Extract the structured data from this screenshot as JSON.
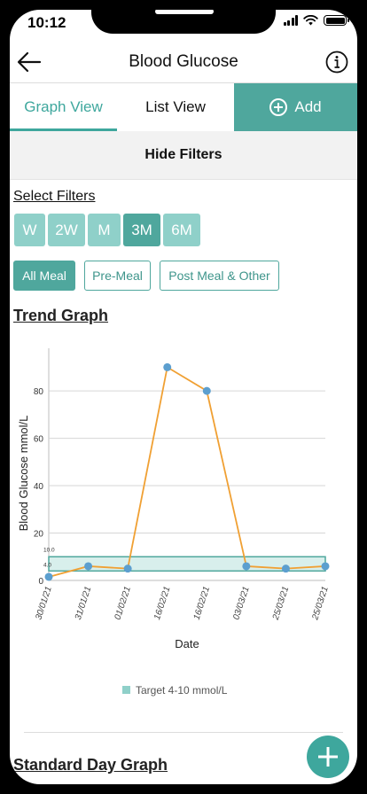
{
  "status": {
    "time": "10:12"
  },
  "header": {
    "title": "Blood Glucose",
    "back_icon": "back-arrow-icon",
    "info_icon": "info-icon"
  },
  "tabs": {
    "graph": "Graph View",
    "list": "List View",
    "add": "Add"
  },
  "hide_filters": "Hide Filters",
  "filters": {
    "label": "Select Filters",
    "ranges": [
      "W",
      "2W",
      "M",
      "3M",
      "6M"
    ],
    "active_range": "3M",
    "meals": [
      "All Meal",
      "Pre-Meal",
      "Post Meal & Other"
    ],
    "active_meal": "All Meal"
  },
  "colors": {
    "accent": "#4fa79d",
    "accent_light": "#8fd0c9",
    "line": "#f0a033",
    "point": "#5c9fcf"
  },
  "trend": {
    "heading": "Trend Graph"
  },
  "chart_data": {
    "type": "line",
    "xlabel": "Date",
    "ylabel": "Blood Glucose mmol/L",
    "categories": [
      "30/01/21",
      "31/01/21",
      "01/02/21",
      "16/02/21",
      "16/02/21",
      "03/03/21",
      "25/03/21",
      "25/03/21"
    ],
    "values": [
      1.5,
      6,
      5,
      90,
      80,
      6,
      5,
      6
    ],
    "yticks": [
      0,
      20,
      40,
      60,
      80
    ],
    "ylim": [
      0,
      98
    ],
    "target_band": {
      "low": 4,
      "high": 10,
      "low_label": "4.0",
      "high_label": "10.0"
    },
    "legend": "Target 4-10 mmol/L",
    "grid": true
  },
  "standard_day": {
    "heading": "Standard Day Graph"
  }
}
